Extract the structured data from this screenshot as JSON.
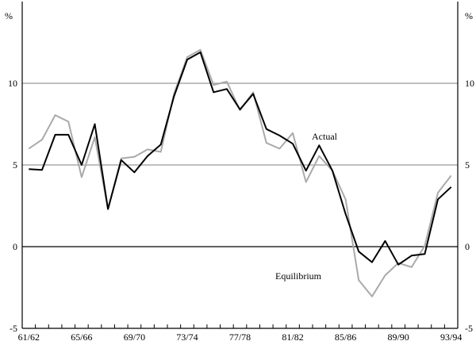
{
  "chart_data": {
    "type": "line",
    "title": "",
    "unit_left": "%",
    "unit_right": "%",
    "ylim": [
      -5,
      15
    ],
    "yticks": [
      -5,
      0,
      5,
      10
    ],
    "grid": true,
    "categories": [
      "61/62",
      "62/63",
      "63/64",
      "64/65",
      "65/66",
      "66/67",
      "67/68",
      "68/69",
      "69/70",
      "70/71",
      "71/72",
      "72/73",
      "73/74",
      "74/75",
      "75/76",
      "76/77",
      "77/78",
      "78/79",
      "79/80",
      "80/81",
      "81/82",
      "82/83",
      "83/84",
      "84/85",
      "85/86",
      "86/87",
      "87/88",
      "88/89",
      "89/90",
      "90/91",
      "91/92",
      "92/93",
      "93/94"
    ],
    "xtick_labels": [
      "61/62",
      "65/66",
      "69/70",
      "73/74",
      "77/78",
      "81/82",
      "85/86",
      "89/90",
      "93/94"
    ],
    "series": [
      {
        "name": "Actual",
        "color": "#000000",
        "values": [
          4.75,
          4.7,
          6.85,
          6.85,
          5.0,
          7.5,
          2.3,
          5.3,
          4.55,
          5.55,
          6.25,
          9.2,
          11.45,
          11.9,
          9.45,
          9.65,
          8.4,
          9.35,
          7.2,
          6.8,
          6.3,
          4.65,
          6.2,
          4.65,
          2.0,
          -0.3,
          -0.95,
          0.35,
          -1.1,
          -0.55,
          -0.45,
          2.9,
          3.65
        ]
      },
      {
        "name": "Equilibrium",
        "color": "#aaaaaa",
        "values": [
          6.0,
          6.55,
          8.05,
          7.65,
          4.25,
          6.7,
          2.3,
          5.4,
          5.5,
          5.95,
          5.8,
          9.35,
          11.6,
          12.05,
          9.9,
          10.1,
          8.35,
          9.45,
          6.35,
          6.0,
          6.95,
          3.95,
          5.55,
          4.65,
          2.9,
          -2.05,
          -3.05,
          -1.75,
          -1.0,
          -1.25,
          0.05,
          3.3,
          4.35
        ]
      }
    ]
  }
}
